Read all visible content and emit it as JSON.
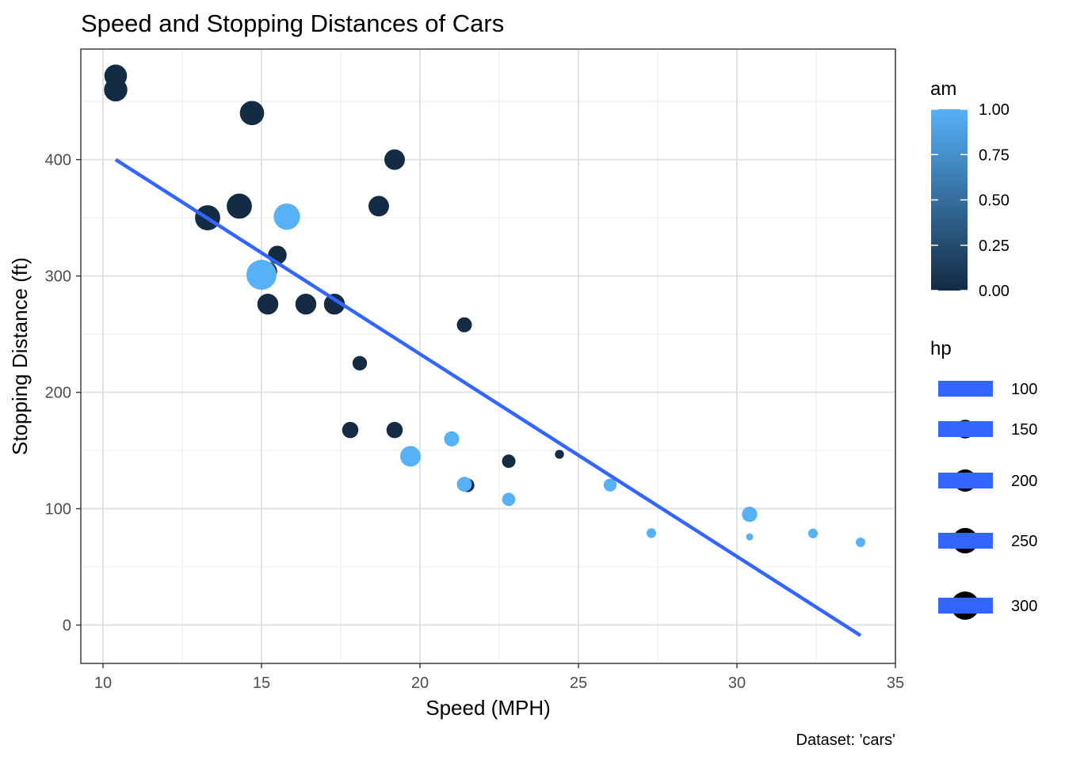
{
  "chart_data": {
    "type": "scatter",
    "title": "Speed and Stopping Distances of Cars",
    "xlabel": "Speed (MPH)",
    "ylabel": "Stopping Distance (ft)",
    "caption": "Dataset: 'cars'",
    "xlim": [
      9.3,
      35.0
    ],
    "ylim": [
      -33,
      495
    ],
    "xticks": [
      10,
      15,
      20,
      25,
      30,
      35
    ],
    "yticks": [
      0,
      100,
      200,
      300,
      400
    ],
    "grid": true,
    "points": [
      {
        "x": 21.0,
        "y": 160,
        "am": 1,
        "hp": 110
      },
      {
        "x": 21.0,
        "y": 160,
        "am": 1,
        "hp": 110
      },
      {
        "x": 22.8,
        "y": 108,
        "am": 1,
        "hp": 93
      },
      {
        "x": 21.4,
        "y": 258,
        "am": 0,
        "hp": 110
      },
      {
        "x": 18.7,
        "y": 360,
        "am": 0,
        "hp": 175
      },
      {
        "x": 18.1,
        "y": 225,
        "am": 0,
        "hp": 105
      },
      {
        "x": 14.3,
        "y": 360,
        "am": 0,
        "hp": 245
      },
      {
        "x": 24.4,
        "y": 146.7,
        "am": 0,
        "hp": 62
      },
      {
        "x": 22.8,
        "y": 140.8,
        "am": 0,
        "hp": 95
      },
      {
        "x": 19.2,
        "y": 167.6,
        "am": 0,
        "hp": 123
      },
      {
        "x": 17.8,
        "y": 167.6,
        "am": 0,
        "hp": 123
      },
      {
        "x": 16.4,
        "y": 275.8,
        "am": 0,
        "hp": 180
      },
      {
        "x": 17.3,
        "y": 275.8,
        "am": 0,
        "hp": 180
      },
      {
        "x": 15.2,
        "y": 275.8,
        "am": 0,
        "hp": 180
      },
      {
        "x": 10.4,
        "y": 472,
        "am": 0,
        "hp": 205
      },
      {
        "x": 10.4,
        "y": 460,
        "am": 0,
        "hp": 215
      },
      {
        "x": 14.7,
        "y": 440,
        "am": 0,
        "hp": 230
      },
      {
        "x": 32.4,
        "y": 78.7,
        "am": 1,
        "hp": 66
      },
      {
        "x": 30.4,
        "y": 75.7,
        "am": 1,
        "hp": 52
      },
      {
        "x": 33.9,
        "y": 71.1,
        "am": 1,
        "hp": 65
      },
      {
        "x": 21.5,
        "y": 120.1,
        "am": 0,
        "hp": 97
      },
      {
        "x": 15.5,
        "y": 318,
        "am": 0,
        "hp": 150
      },
      {
        "x": 15.2,
        "y": 304,
        "am": 0,
        "hp": 150
      },
      {
        "x": 13.3,
        "y": 350,
        "am": 0,
        "hp": 245
      },
      {
        "x": 19.2,
        "y": 400,
        "am": 0,
        "hp": 175
      },
      {
        "x": 27.3,
        "y": 79,
        "am": 1,
        "hp": 66
      },
      {
        "x": 26.0,
        "y": 120.3,
        "am": 1,
        "hp": 91
      },
      {
        "x": 30.4,
        "y": 95.1,
        "am": 1,
        "hp": 113
      },
      {
        "x": 15.8,
        "y": 351,
        "am": 1,
        "hp": 264
      },
      {
        "x": 19.7,
        "y": 145,
        "am": 1,
        "hp": 175
      },
      {
        "x": 15.0,
        "y": 301,
        "am": 1,
        "hp": 335
      },
      {
        "x": 21.4,
        "y": 121,
        "am": 1,
        "hp": 109
      }
    ],
    "fit_line": {
      "x": [
        10.4,
        33.9
      ],
      "y": [
        400,
        -9
      ]
    },
    "colors": {
      "am_low": "#132B43",
      "am_high": "#56B1F7",
      "line": "#3366FF"
    },
    "legend_am": {
      "title": "am",
      "ticks": [
        "0.00",
        "0.25",
        "0.50",
        "0.75",
        "1.00"
      ],
      "placement": "right"
    },
    "legend_hp": {
      "title": "hp",
      "values": [
        100,
        150,
        200,
        250,
        300
      ],
      "labels": [
        "100",
        "150",
        "200",
        "250",
        "300"
      ],
      "placement": "right"
    }
  }
}
